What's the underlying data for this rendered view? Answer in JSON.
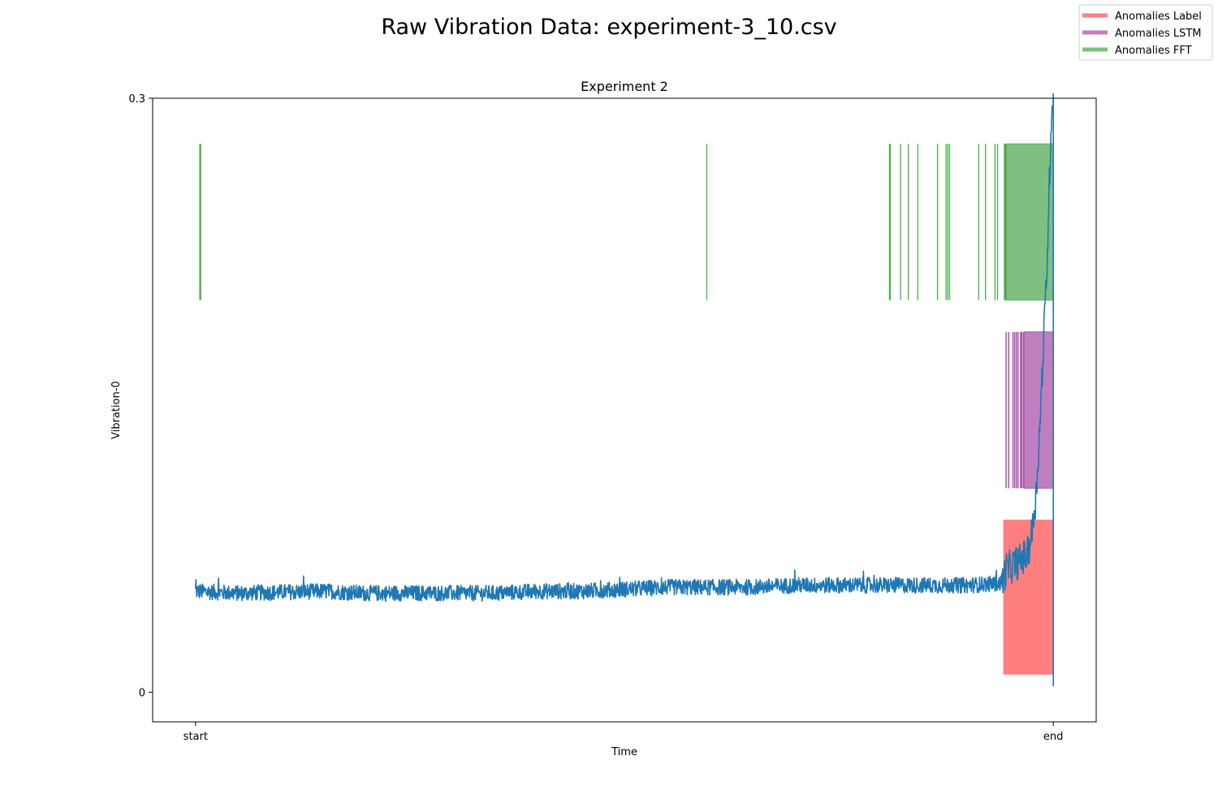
{
  "figure": {
    "suptitle": "Raw Vibration Data: experiment-3_10.csv"
  },
  "legend": {
    "placement": "top-right (figure)",
    "entries": [
      {
        "label": "Anomalies Label",
        "color": "#ff7f7f"
      },
      {
        "label": "Anomalies LSTM",
        "color": "#bf7fbf"
      },
      {
        "label": "Anomalies FFT",
        "color": "#7fbf7f"
      }
    ]
  },
  "chart_data": {
    "type": "line",
    "title": "Experiment 2",
    "xlabel": "Time",
    "ylabel": "Vibration-0",
    "xlim": [
      -0.05,
      1.05
    ],
    "ylim": [
      -0.015,
      0.3
    ],
    "x_ticks": [
      {
        "value": 0,
        "label": "start"
      },
      {
        "value": 1,
        "label": "end"
      }
    ],
    "y_ticks": [
      {
        "value": 0,
        "label": "0"
      },
      {
        "value": 0.3,
        "label": "0.3"
      }
    ],
    "grid": false,
    "series": [
      {
        "color": "#1f77b4",
        "points": [
          [
            0.0,
            0.051
          ],
          [
            0.05,
            0.05
          ],
          [
            0.1,
            0.0505
          ],
          [
            0.15,
            0.051
          ],
          [
            0.2,
            0.05
          ],
          [
            0.25,
            0.05
          ],
          [
            0.3,
            0.05
          ],
          [
            0.35,
            0.05
          ],
          [
            0.4,
            0.051
          ],
          [
            0.45,
            0.051
          ],
          [
            0.5,
            0.052
          ],
          [
            0.55,
            0.053
          ],
          [
            0.6,
            0.053
          ],
          [
            0.65,
            0.053
          ],
          [
            0.7,
            0.054
          ],
          [
            0.75,
            0.054
          ],
          [
            0.8,
            0.054
          ],
          [
            0.85,
            0.054
          ],
          [
            0.9,
            0.054
          ],
          [
            0.94,
            0.055
          ],
          [
            0.945,
            0.062
          ],
          [
            0.96,
            0.066
          ],
          [
            0.97,
            0.07
          ],
          [
            0.975,
            0.08
          ],
          [
            0.98,
            0.1
          ],
          [
            0.985,
            0.14
          ],
          [
            0.99,
            0.19
          ],
          [
            0.993,
            0.22
          ],
          [
            0.995,
            0.25
          ],
          [
            0.998,
            0.295
          ],
          [
            1.0,
            0.3
          ],
          [
            1.0,
            0.003
          ]
        ],
        "noise_amplitude": 0.004
      }
    ],
    "anomaly_bands": {
      "label": {
        "color": "#ff7f7f",
        "band": [
          0.009,
          0.087
        ],
        "regions": [
          [
            0.942,
            1.0
          ]
        ]
      },
      "lstm": {
        "color": "#bf7fbf",
        "band": [
          0.103,
          0.182
        ],
        "edgecolor": "#8b1f8b",
        "lines": [
          0.945,
          0.948,
          0.953,
          0.955,
          0.957,
          0.959,
          0.962,
          0.963,
          0.965,
          0.967,
          0.968,
          0.969,
          0.97,
          0.971,
          0.972,
          0.973,
          0.974
        ],
        "regions": [
          [
            0.966,
            1.0
          ]
        ]
      },
      "fft": {
        "color": "#7fbf7f",
        "band": [
          0.198,
          0.277
        ],
        "edgecolor": "#2ca02c",
        "lines": [
          0.005,
          0.006,
          0.596,
          0.809,
          0.81,
          0.822,
          0.831,
          0.842,
          0.865,
          0.875,
          0.877,
          0.879,
          0.913,
          0.921,
          0.932,
          0.935,
          0.943,
          0.944,
          0.945
        ],
        "regions": [
          [
            0.945,
            1.0
          ]
        ]
      }
    }
  }
}
